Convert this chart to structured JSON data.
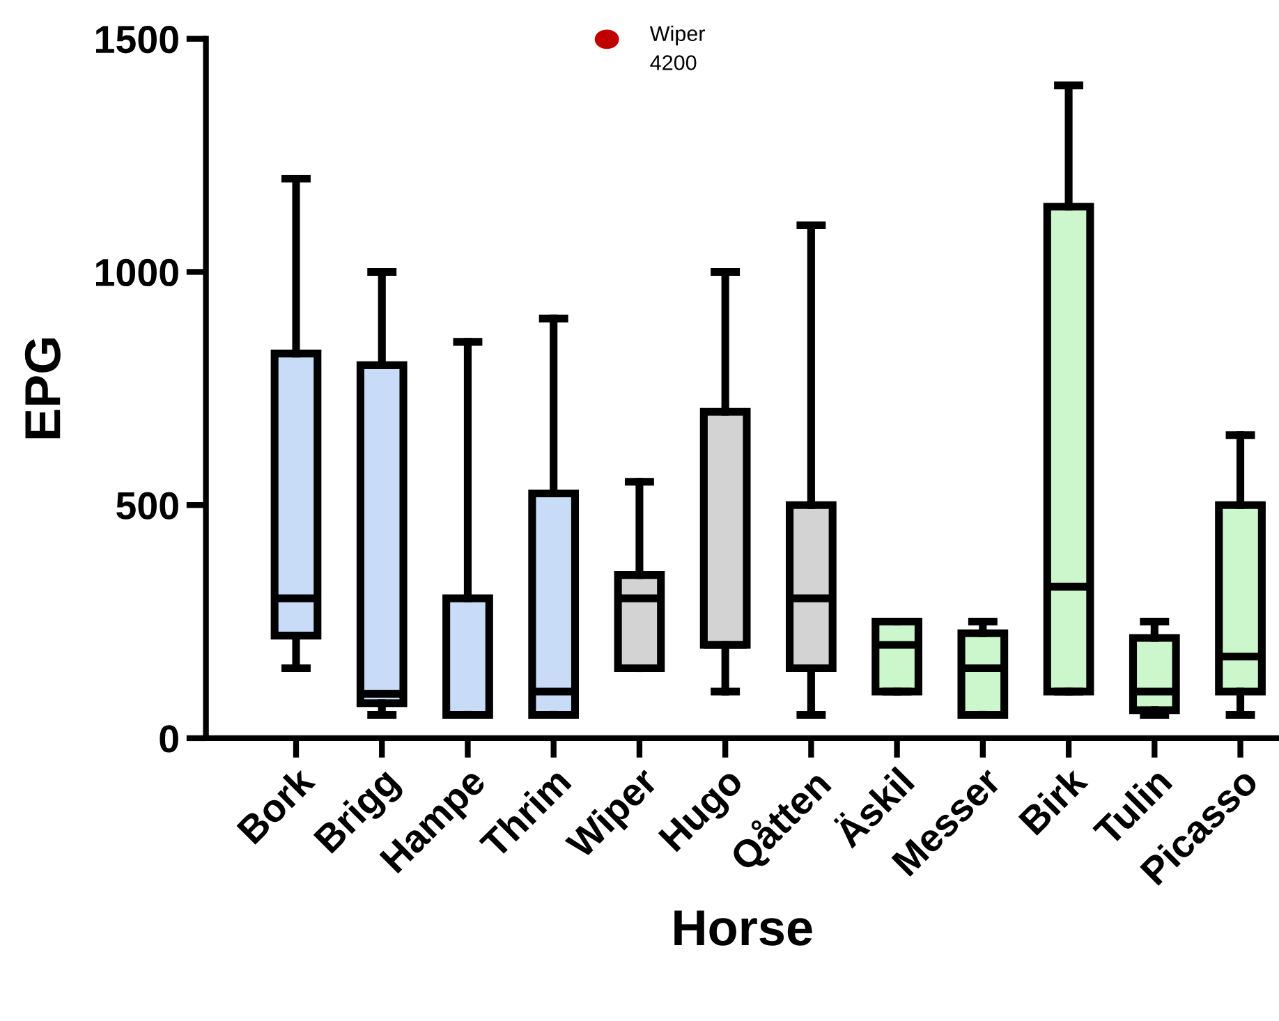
{
  "chart_data": {
    "type": "box",
    "xlabel": "Horse",
    "ylabel": "EPG",
    "categories": [
      "Bork",
      "Brigg",
      "Hampe",
      "Thrim",
      "Wiper",
      "Hugo",
      "Qåtten",
      "Äskil",
      "Messer",
      "Birk",
      "Tulin",
      "Picasso"
    ],
    "colors": [
      "#c9dcf7",
      "#c9dcf7",
      "#c9dcf7",
      "#c9dcf7",
      "#d3d3d3",
      "#d3d3d3",
      "#d3d3d3",
      "#ccf7cc",
      "#ccf7cc",
      "#ccf7cc",
      "#ccf7cc",
      "#ccf7cc"
    ],
    "boxes": [
      {
        "low": 150,
        "q1": 220,
        "median": 300,
        "q3": 825,
        "high": 1200
      },
      {
        "low": 50,
        "q1": 75,
        "median": 95,
        "q3": 800,
        "high": 1000
      },
      {
        "low": 50,
        "q1": 50,
        "median": 50,
        "q3": 300,
        "high": 850
      },
      {
        "low": 50,
        "q1": 50,
        "median": 100,
        "q3": 525,
        "high": 900
      },
      {
        "low": 150,
        "q1": 150,
        "median": 300,
        "q3": 350,
        "high": 550
      },
      {
        "low": 100,
        "q1": 200,
        "median": 200,
        "q3": 700,
        "high": 1000
      },
      {
        "low": 50,
        "q1": 150,
        "median": 300,
        "q3": 500,
        "high": 1100
      },
      {
        "low": 100,
        "q1": 100,
        "median": 200,
        "q3": 250,
        "high": 250
      },
      {
        "low": 50,
        "q1": 50,
        "median": 150,
        "q3": 225,
        "high": 250
      },
      {
        "low": 100,
        "q1": 100,
        "median": 325,
        "q3": 1140,
        "high": 1400
      },
      {
        "low": 50,
        "q1": 60,
        "median": 100,
        "q3": 215,
        "high": 250
      },
      {
        "low": 50,
        "q1": 100,
        "median": 175,
        "q3": 500,
        "high": 650
      }
    ],
    "ylim": [
      0,
      1500
    ],
    "yticks": [
      0,
      500,
      1000,
      1500
    ],
    "grid": false,
    "annotations": [
      "Wiper\n4200"
    ]
  }
}
